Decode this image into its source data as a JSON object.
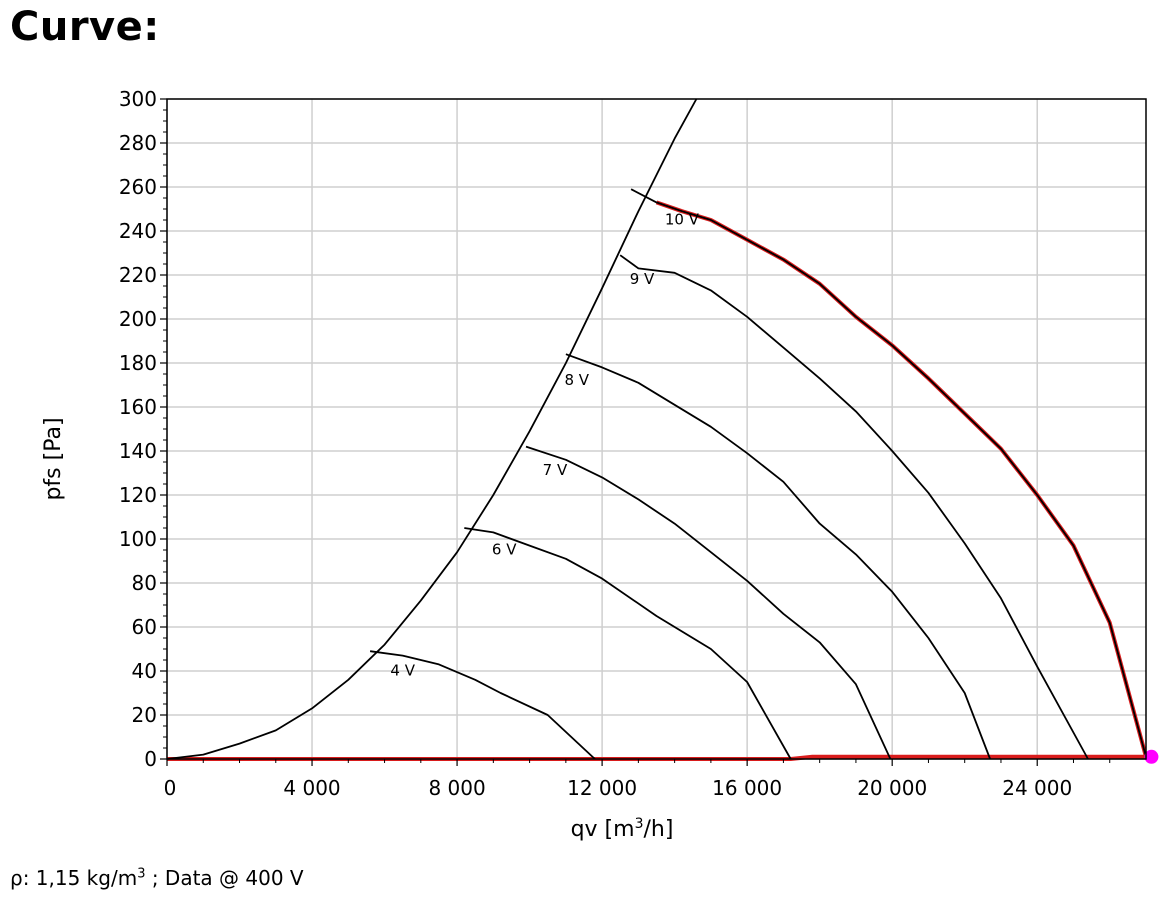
{
  "heading": "Curve:",
  "footnote": {
    "prefix": "ρ: 1,15 kg/m",
    "sup": "3",
    "suffix": " ; Data @ 400 V"
  },
  "colors": {
    "curve": "#000000",
    "operating_curve": "#d91c1c",
    "operating_point": "#ff00ff",
    "grid": "#cfcfcf"
  },
  "chart_data": {
    "type": "line",
    "xlabel": {
      "main": "qv [m",
      "sup": "3",
      "end": "/h]"
    },
    "ylabel": "pfs [Pa]",
    "xlim": [
      0,
      27000
    ],
    "ylim": [
      0,
      300
    ],
    "x_ticks": [
      {
        "value": 0,
        "label": "0"
      },
      {
        "value": 4000,
        "label": "4 000"
      },
      {
        "value": 8000,
        "label": "8 000"
      },
      {
        "value": 12000,
        "label": "12 000"
      },
      {
        "value": 16000,
        "label": "16 000"
      },
      {
        "value": 20000,
        "label": "20 000"
      },
      {
        "value": 24000,
        "label": "24 000"
      }
    ],
    "y_ticks": [
      0,
      20,
      40,
      60,
      80,
      100,
      120,
      140,
      160,
      180,
      200,
      220,
      240,
      260,
      280,
      300
    ],
    "grid": true,
    "series": [
      {
        "name": "4 V",
        "label_at": [
          6500,
          38
        ],
        "points": [
          [
            5600,
            49
          ],
          [
            6500,
            47
          ],
          [
            7500,
            43
          ],
          [
            8500,
            36
          ],
          [
            9200,
            30
          ],
          [
            10500,
            20
          ],
          [
            11800,
            0
          ]
        ]
      },
      {
        "name": "6 V",
        "label_at": [
          9300,
          93
        ],
        "points": [
          [
            8200,
            105
          ],
          [
            9000,
            103
          ],
          [
            10000,
            97
          ],
          [
            11000,
            91
          ],
          [
            12000,
            82
          ],
          [
            13500,
            65
          ],
          [
            15000,
            50
          ],
          [
            16000,
            35
          ],
          [
            17200,
            0
          ]
        ]
      },
      {
        "name": "7 V",
        "label_at": [
          10700,
          129
        ],
        "points": [
          [
            9900,
            142
          ],
          [
            11000,
            136
          ],
          [
            12000,
            128
          ],
          [
            13000,
            118
          ],
          [
            14000,
            107
          ],
          [
            15000,
            94
          ],
          [
            16000,
            81
          ],
          [
            17000,
            66
          ],
          [
            18000,
            53
          ],
          [
            19000,
            34
          ],
          [
            19950,
            0
          ]
        ]
      },
      {
        "name": "8 V",
        "label_at": [
          11300,
          170
        ],
        "points": [
          [
            11000,
            184
          ],
          [
            12000,
            178
          ],
          [
            13000,
            171
          ],
          [
            14000,
            161
          ],
          [
            15000,
            151
          ],
          [
            16000,
            139
          ],
          [
            17000,
            126
          ],
          [
            18000,
            107
          ],
          [
            19000,
            93
          ],
          [
            20000,
            76
          ],
          [
            21000,
            55
          ],
          [
            22000,
            30
          ],
          [
            22700,
            0
          ]
        ]
      },
      {
        "name": "9 V",
        "label_at": [
          13100,
          216
        ],
        "points": [
          [
            12500,
            229
          ],
          [
            13000,
            223
          ],
          [
            14000,
            221
          ],
          [
            15000,
            213
          ],
          [
            16000,
            201
          ],
          [
            17000,
            187
          ],
          [
            18000,
            173
          ],
          [
            19000,
            158
          ],
          [
            20000,
            140
          ],
          [
            21000,
            121
          ],
          [
            22000,
            98
          ],
          [
            23000,
            73
          ],
          [
            24000,
            42
          ],
          [
            25400,
            0
          ]
        ]
      },
      {
        "name": "10 V",
        "label_at": [
          14200,
          243
        ],
        "points": [
          [
            12800,
            259
          ],
          [
            13500,
            253
          ],
          [
            14200,
            249
          ],
          [
            15000,
            245
          ],
          [
            16000,
            236
          ],
          [
            17000,
            227
          ],
          [
            18000,
            216
          ],
          [
            19000,
            201
          ],
          [
            20000,
            188
          ],
          [
            21000,
            173
          ],
          [
            22000,
            157
          ],
          [
            23000,
            141
          ],
          [
            24000,
            120
          ],
          [
            25000,
            97
          ],
          [
            26000,
            62
          ],
          [
            27000,
            1
          ]
        ]
      },
      {
        "name": "",
        "label_at": null,
        "points": [
          [
            0,
            0
          ],
          [
            1000,
            2
          ],
          [
            2000,
            7
          ],
          [
            3000,
            13
          ],
          [
            4000,
            23
          ],
          [
            5000,
            36
          ],
          [
            6000,
            52
          ],
          [
            7000,
            72
          ],
          [
            8000,
            94
          ],
          [
            9000,
            120
          ],
          [
            10000,
            149
          ],
          [
            11000,
            180
          ],
          [
            12000,
            214
          ],
          [
            13000,
            249
          ],
          [
            14000,
            282
          ],
          [
            14600,
            300
          ]
        ]
      }
    ],
    "operating_curve": {
      "points": [
        [
          0,
          0
        ],
        [
          17200,
          0
        ],
        [
          17800,
          1
        ],
        [
          20000,
          1
        ],
        [
          27000,
          1
        ],
        [
          26000,
          62
        ],
        [
          25000,
          97
        ],
        [
          24000,
          120
        ],
        [
          23000,
          141
        ],
        [
          22000,
          157
        ],
        [
          21000,
          173
        ],
        [
          20000,
          188
        ],
        [
          19000,
          201
        ],
        [
          18000,
          216
        ],
        [
          17000,
          227
        ],
        [
          16000,
          236
        ],
        [
          15000,
          245
        ],
        [
          14200,
          249
        ],
        [
          13500,
          253
        ]
      ]
    },
    "operating_point": [
      27150,
      1
    ]
  }
}
